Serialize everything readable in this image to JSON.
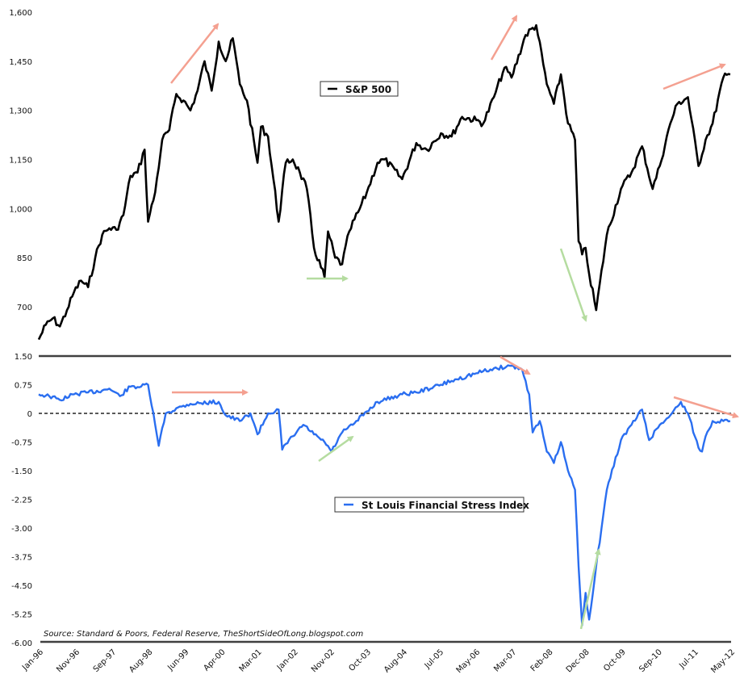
{
  "chart_data": [
    {
      "type": "line",
      "title": "S&P 500",
      "legend": [
        "S&P 500"
      ],
      "legend_position": "upper-center",
      "ylabel": "",
      "xlabel": "",
      "ylim": [
        600,
        1600
      ],
      "yticks": [
        "1,600",
        "1,450",
        "1,300",
        "1,150",
        "1,000",
        "850",
        "700"
      ],
      "ytick_values": [
        1600,
        1450,
        1300,
        1150,
        1000,
        850,
        700
      ],
      "grid": false,
      "series": [
        {
          "name": "S&P 500",
          "color": "#000000",
          "x": [
            "Jan-96",
            "Mar-96",
            "May-96",
            "Jul-96",
            "Sep-96",
            "Nov-96",
            "Jan-97",
            "Mar-97",
            "May-97",
            "Jul-97",
            "Sep-97",
            "Nov-97",
            "Jan-98",
            "Mar-98",
            "May-98",
            "Jul-98",
            "Aug-98",
            "Oct-98",
            "Dec-98",
            "Feb-99",
            "Apr-99",
            "Jun-99",
            "Aug-99",
            "Oct-99",
            "Dec-99",
            "Feb-00",
            "Apr-00",
            "Jun-00",
            "Aug-00",
            "Oct-00",
            "Dec-00",
            "Mar-01",
            "Apr-01",
            "Jun-01",
            "Sep-01",
            "Nov-01",
            "Jan-02",
            "Mar-02",
            "May-02",
            "Jul-02",
            "Oct-02",
            "Nov-02",
            "Jan-03",
            "Mar-03",
            "May-03",
            "Aug-03",
            "Oct-03",
            "Jan-04",
            "Mar-04",
            "Aug-04",
            "Dec-04",
            "Mar-05",
            "Jul-05",
            "Oct-05",
            "Jan-06",
            "May-06",
            "Jul-06",
            "Oct-06",
            "Jan-07",
            "Mar-07",
            "Jul-07",
            "Oct-07",
            "Jan-08",
            "Mar-08",
            "May-08",
            "Jul-08",
            "Sep-08",
            "Oct-08",
            "Nov-08",
            "Dec-08",
            "Jan-09",
            "Mar-09",
            "Jun-09",
            "Oct-09",
            "Jan-10",
            "Apr-10",
            "Jul-10",
            "Sep-10",
            "Dec-10",
            "Feb-11",
            "May-11",
            "Aug-11",
            "Oct-11",
            "Dec-11",
            "Mar-12",
            "May-12"
          ],
          "values": [
            600,
            645,
            665,
            640,
            690,
            745,
            780,
            760,
            850,
            920,
            940,
            935,
            980,
            1100,
            1110,
            1180,
            960,
            1050,
            1210,
            1240,
            1350,
            1330,
            1300,
            1360,
            1450,
            1360,
            1510,
            1450,
            1520,
            1380,
            1330,
            1140,
            1250,
            1220,
            960,
            1140,
            1150,
            1110,
            1060,
            880,
            790,
            930,
            850,
            830,
            930,
            1000,
            1050,
            1140,
            1150,
            1090,
            1200,
            1180,
            1230,
            1220,
            1280,
            1270,
            1260,
            1340,
            1430,
            1400,
            1530,
            1560,
            1380,
            1320,
            1410,
            1260,
            1210,
            900,
            860,
            880,
            800,
            690,
            920,
            1060,
            1110,
            1190,
            1060,
            1130,
            1260,
            1320,
            1340,
            1130,
            1210,
            1260,
            1400,
            1410
          ]
        }
      ],
      "annotations": [
        {
          "type": "arrow",
          "color": "#f4a090",
          "direction": "up",
          "near": "Jun-99 to Apr-00"
        },
        {
          "type": "arrow",
          "color": "#b5dca0",
          "direction": "right",
          "near": "Nov-02"
        },
        {
          "type": "arrow",
          "color": "#f4a090",
          "direction": "up",
          "near": "Mar-07"
        },
        {
          "type": "arrow",
          "color": "#b5dca0",
          "direction": "down",
          "near": "Dec-08"
        },
        {
          "type": "arrow",
          "color": "#f4a090",
          "direction": "up",
          "near": "Sep-10 to May-12"
        }
      ]
    },
    {
      "type": "line",
      "title": "St Louis Financial Stress Index",
      "legend": [
        "St Louis Financial Stress Index"
      ],
      "legend_position": "center",
      "ylabel": "",
      "xlabel": "",
      "ylim": [
        -6.0,
        1.5
      ],
      "yticks": [
        "1.50",
        "0.75",
        "0",
        "-0.75",
        "-1.50",
        "-2.25",
        "-3.00",
        "-3.75",
        "-4.50",
        "-5.25",
        "-6.00"
      ],
      "ytick_values": [
        1.5,
        0.75,
        0,
        -0.75,
        -1.5,
        -2.25,
        -3.0,
        -3.75,
        -4.5,
        -5.25,
        -6.0
      ],
      "zero_line": "dashed",
      "grid": false,
      "note": "Axis is inverted in sign: plotted as negative of index (higher = less stress)",
      "series": [
        {
          "name": "St Louis Financial Stress Index",
          "color": "#2a6ef0",
          "x": [
            "Jan-96",
            "Apr-96",
            "Jul-96",
            "Nov-96",
            "Mar-97",
            "Jul-97",
            "Sep-97",
            "Dec-97",
            "Mar-98",
            "Jun-98",
            "Aug-98",
            "Oct-98",
            "Nov-98",
            "Jan-99",
            "Jun-99",
            "Aug-99",
            "Apr-00",
            "Jun-00",
            "Oct-00",
            "Jan-01",
            "Mar-01",
            "Jun-01",
            "Sep-01",
            "Oct-01",
            "Jan-02",
            "Apr-02",
            "Jul-02",
            "Oct-02",
            "Dec-02",
            "Mar-03",
            "Jun-03",
            "Oct-03",
            "Jan-04",
            "Aug-04",
            "Dec-04",
            "Jul-05",
            "Oct-05",
            "May-06",
            "Sep-06",
            "Mar-07",
            "Jun-07",
            "Aug-07",
            "Sep-07",
            "Nov-07",
            "Jan-08",
            "Mar-08",
            "May-08",
            "Jul-08",
            "Sep-08",
            "Oct-08",
            "Nov-08",
            "Dec-08",
            "Jan-09",
            "Mar-09",
            "Jun-09",
            "Oct-09",
            "Jan-10",
            "Apr-10",
            "Jun-10",
            "Sep-10",
            "Dec-10",
            "Mar-11",
            "May-11",
            "Aug-11",
            "Sep-11",
            "Oct-11",
            "Dec-11",
            "Mar-12",
            "May-12"
          ],
          "values": [
            0.5,
            0.45,
            0.35,
            0.5,
            0.55,
            0.6,
            0.65,
            0.45,
            0.7,
            0.7,
            0.75,
            -0.3,
            -0.85,
            0.0,
            0.2,
            0.25,
            0.3,
            -0.05,
            -0.2,
            0.0,
            -0.55,
            0.0,
            0.1,
            -0.95,
            -0.6,
            -0.3,
            -0.55,
            -0.75,
            -1.0,
            -0.5,
            -0.3,
            0.05,
            0.3,
            0.5,
            0.55,
            0.75,
            0.85,
            1.05,
            1.15,
            1.25,
            1.15,
            0.5,
            -0.5,
            -0.2,
            -1.0,
            -1.3,
            -0.75,
            -1.5,
            -2.0,
            -4.0,
            -5.55,
            -4.7,
            -5.4,
            -4.0,
            -2.0,
            -0.7,
            -0.3,
            0.1,
            -0.7,
            -0.3,
            -0.05,
            0.3,
            0.0,
            -0.9,
            -1.0,
            -0.6,
            -0.2,
            -0.2,
            -0.2
          ]
        }
      ],
      "annotations": [
        {
          "type": "arrow",
          "color": "#f4a090",
          "direction": "right",
          "near": "Jun-99 to Apr-00"
        },
        {
          "type": "arrow",
          "color": "#b5dca0",
          "direction": "up-right",
          "near": "Nov-02"
        },
        {
          "type": "arrow",
          "color": "#f4a090",
          "direction": "down-right",
          "near": "Mar-07"
        },
        {
          "type": "arrow",
          "color": "#b5dca0",
          "direction": "up",
          "near": "Dec-08"
        },
        {
          "type": "arrow",
          "color": "#f4a090",
          "direction": "down-right",
          "near": "Sep-10 to May-12"
        }
      ]
    }
  ],
  "x_axis": {
    "ticks": [
      "Jan-96",
      "Nov-96",
      "Sep-97",
      "Aug-98",
      "Jun-99",
      "Apr-00",
      "Mar-01",
      "Jan-02",
      "Nov-02",
      "Oct-03",
      "Aug-04",
      "Jul-05",
      "May-06",
      "Mar-07",
      "Feb-08",
      "Dec-08",
      "Oct-09",
      "Sep-10",
      "Jul-11",
      "May-12"
    ]
  },
  "legend_top": {
    "label": "S&P 500"
  },
  "legend_bottom": {
    "label": "St Louis Financial Stress Index"
  },
  "source": "Source: Standard & Poors, Federal Reserve, TheShortSideOfLong.blogspot.com",
  "colors": {
    "sp500": "#000000",
    "stress": "#2a6ef0",
    "arrow_red": "#f4a090",
    "arrow_green": "#b5dca0",
    "axis": "#404040"
  }
}
